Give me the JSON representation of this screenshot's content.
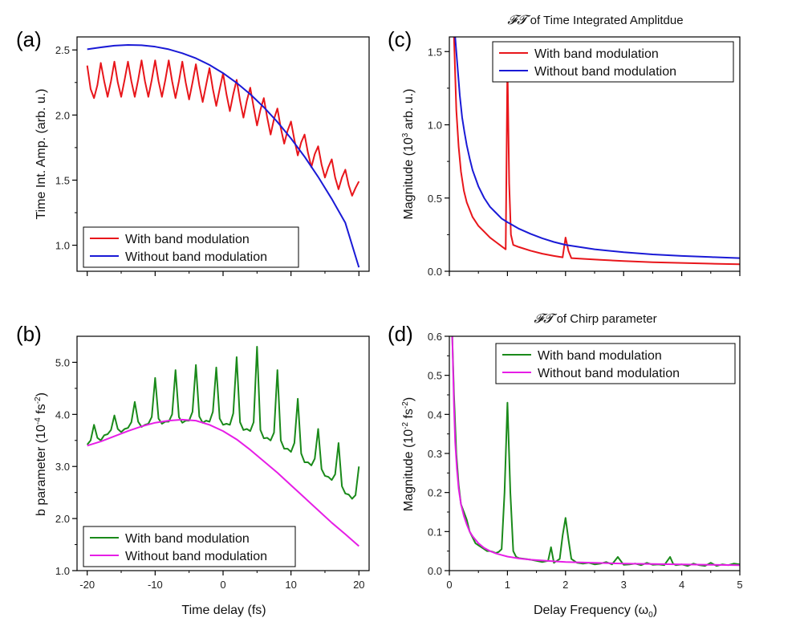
{
  "figure": {
    "xlabel_time": "Time delay (fs)",
    "xlabel_freq_prefix": "Delay Frequency (",
    "xlabel_freq_symbol": "ω",
    "xlabel_freq_sub": "0",
    "xlabel_freq_suffix": ")"
  },
  "chart_data": [
    {
      "id": "a",
      "panel_label": "(a)",
      "type": "line",
      "title": "",
      "ylabel": "Time Int. Amp. (arb. u.)",
      "xlim": [
        -21.5,
        21.5
      ],
      "ylim": [
        0.8,
        2.6
      ],
      "xticks": [
        -20,
        -10,
        0,
        10,
        20
      ],
      "show_xtick_labels": false,
      "yticks": [
        1.0,
        1.5,
        2.0,
        2.5
      ],
      "ytick_labels": [
        "1.0",
        "1.5",
        "2.0",
        "2.5"
      ],
      "legend_position": "bottom-left",
      "series": [
        {
          "name": "With band modulation",
          "color": "#e8161b",
          "x": [
            -20,
            -19.5,
            -19,
            -18.5,
            -18,
            -17.5,
            -17,
            -16.5,
            -16,
            -15.5,
            -15,
            -14.5,
            -14,
            -13.5,
            -13,
            -12.5,
            -12,
            -11.5,
            -11,
            -10.5,
            -10,
            -9.5,
            -9,
            -8.5,
            -8,
            -7.5,
            -7,
            -6.5,
            -6,
            -5.5,
            -5,
            -4.5,
            -4,
            -3.5,
            -3,
            -2.5,
            -2,
            -1.5,
            -1,
            -0.5,
            0,
            0.5,
            1,
            1.5,
            2,
            2.5,
            3,
            3.5,
            4,
            4.5,
            5,
            5.5,
            6,
            6.5,
            7,
            7.5,
            8,
            8.5,
            9,
            9.5,
            10,
            10.5,
            11,
            11.5,
            12,
            12.5,
            13,
            13.5,
            14,
            14.5,
            15,
            15.5,
            16,
            16.5,
            17,
            17.5,
            18,
            18.5,
            19,
            19.5,
            20
          ],
          "y": [
            2.38,
            2.2,
            2.13,
            2.23,
            2.4,
            2.26,
            2.14,
            2.26,
            2.41,
            2.25,
            2.14,
            2.27,
            2.41,
            2.26,
            2.14,
            2.27,
            2.42,
            2.26,
            2.14,
            2.27,
            2.42,
            2.26,
            2.14,
            2.27,
            2.42,
            2.26,
            2.13,
            2.26,
            2.41,
            2.25,
            2.12,
            2.25,
            2.39,
            2.23,
            2.1,
            2.23,
            2.36,
            2.2,
            2.07,
            2.2,
            2.32,
            2.16,
            2.03,
            2.16,
            2.27,
            2.11,
            1.98,
            2.11,
            2.21,
            2.06,
            1.92,
            2.04,
            2.13,
            1.98,
            1.85,
            1.97,
            2.05,
            1.9,
            1.78,
            1.88,
            1.95,
            1.81,
            1.69,
            1.79,
            1.85,
            1.71,
            1.6,
            1.7,
            1.76,
            1.62,
            1.52,
            1.6,
            1.66,
            1.52,
            1.43,
            1.52,
            1.58,
            1.46,
            1.38,
            1.44,
            1.49
          ]
        },
        {
          "name": "Without band modulation",
          "color": "#1a1ad6",
          "x": [
            -20,
            -18,
            -16,
            -14,
            -12,
            -10,
            -8,
            -6,
            -4,
            -2,
            0,
            2,
            4,
            6,
            8,
            10,
            12,
            14,
            16,
            18,
            20
          ],
          "y": [
            2.505,
            2.52,
            2.533,
            2.538,
            2.536,
            2.525,
            2.505,
            2.475,
            2.436,
            2.385,
            2.322,
            2.247,
            2.16,
            2.06,
            1.947,
            1.82,
            1.68,
            1.525,
            1.356,
            1.172,
            0.83
          ]
        }
      ]
    },
    {
      "id": "b",
      "panel_label": "(b)",
      "type": "line",
      "title": "",
      "ylabel_prefix": "b parameter (10",
      "ylabel_sup": "-4",
      "ylabel_mid": " fs",
      "ylabel_sup2": "-2",
      "ylabel_suffix": ")",
      "xlim": [
        -21.5,
        21.5
      ],
      "ylim": [
        1.0,
        5.5
      ],
      "xticks": [
        -20,
        -10,
        0,
        10,
        20
      ],
      "xtick_labels": [
        "-20",
        "-10",
        "0",
        "10",
        "20"
      ],
      "yticks": [
        1.0,
        2.0,
        3.0,
        4.0,
        5.0
      ],
      "ytick_labels": [
        "1.0",
        "2.0",
        "3.0",
        "4.0",
        "5.0"
      ],
      "legend_position": "bottom-left",
      "series": [
        {
          "name": "With band modulation",
          "color": "#1a8a1a",
          "x": [
            -20,
            -19.5,
            -19,
            -18.5,
            -18,
            -17.5,
            -17,
            -16.5,
            -16,
            -15.5,
            -15,
            -14.5,
            -14,
            -13.5,
            -13,
            -12.5,
            -12,
            -11.5,
            -11,
            -10.5,
            -10,
            -9.5,
            -9,
            -8.5,
            -8,
            -7.5,
            -7,
            -6.5,
            -6,
            -5.5,
            -5,
            -4.5,
            -4,
            -3.5,
            -3,
            -2.5,
            -2,
            -1.5,
            -1,
            -0.5,
            0,
            0.5,
            1,
            1.5,
            2,
            2.5,
            3,
            3.5,
            4,
            4.5,
            5,
            5.5,
            6,
            6.5,
            7,
            7.5,
            8,
            8.5,
            9,
            9.5,
            10,
            10.5,
            11,
            11.5,
            12,
            12.5,
            13,
            13.5,
            14,
            14.5,
            15,
            15.5,
            16,
            16.5,
            17,
            17.5,
            18,
            18.5,
            19,
            19.5,
            20
          ],
          "y": [
            3.42,
            3.5,
            3.8,
            3.55,
            3.5,
            3.6,
            3.62,
            3.7,
            3.98,
            3.72,
            3.66,
            3.72,
            3.74,
            3.85,
            4.24,
            3.86,
            3.76,
            3.8,
            3.82,
            3.95,
            4.7,
            3.92,
            3.82,
            3.86,
            3.86,
            4.0,
            4.85,
            3.95,
            3.84,
            3.88,
            3.88,
            4.05,
            4.95,
            3.96,
            3.84,
            3.88,
            3.86,
            4.05,
            4.9,
            3.92,
            3.8,
            3.82,
            3.8,
            4.02,
            5.1,
            3.85,
            3.7,
            3.72,
            3.68,
            3.85,
            5.3,
            3.7,
            3.54,
            3.55,
            3.5,
            3.65,
            4.85,
            3.5,
            3.34,
            3.34,
            3.28,
            3.45,
            4.3,
            3.25,
            3.08,
            3.08,
            3.02,
            3.15,
            3.72,
            2.95,
            2.82,
            2.8,
            2.74,
            2.85,
            3.45,
            2.62,
            2.48,
            2.46,
            2.38,
            2.45,
            3.0
          ]
        },
        {
          "name": "Without band modulation",
          "color": "#e61ee6",
          "x": [
            -20,
            -18,
            -16,
            -14,
            -12,
            -10,
            -8,
            -6,
            -4,
            -2,
            0,
            2,
            4,
            6,
            8,
            10,
            12,
            14,
            16,
            18,
            20
          ],
          "y": [
            3.4,
            3.48,
            3.58,
            3.68,
            3.77,
            3.84,
            3.88,
            3.9,
            3.88,
            3.8,
            3.68,
            3.52,
            3.32,
            3.1,
            2.88,
            2.64,
            2.4,
            2.16,
            1.92,
            1.7,
            1.47
          ]
        }
      ]
    },
    {
      "id": "c",
      "panel_label": "(c)",
      "type": "line",
      "title_fancy": "𝓕𝓣",
      "title": " of Time Integrated Amplitdue",
      "ylabel_prefix": "Magnitude (10",
      "ylabel_sup": "3",
      "ylabel_suffix": " arb. u.)",
      "xlim": [
        0,
        5
      ],
      "ylim": [
        0.0,
        1.6
      ],
      "xticks": [
        0,
        1,
        2,
        3,
        4,
        5
      ],
      "show_xtick_labels": false,
      "yticks": [
        0.0,
        0.5,
        1.0,
        1.5
      ],
      "ytick_labels": [
        "0.0",
        "0.5",
        "1.0",
        "1.5"
      ],
      "legend_position": "top-right",
      "series": [
        {
          "name": "With band modulation",
          "color": "#e8161b",
          "x": [
            0.08,
            0.12,
            0.16,
            0.2,
            0.25,
            0.3,
            0.4,
            0.5,
            0.6,
            0.7,
            0.8,
            0.9,
            0.97,
            1.0,
            1.03,
            1.06,
            1.1,
            1.2,
            1.4,
            1.6,
            1.8,
            1.95,
            2.0,
            2.05,
            2.1,
            2.3,
            2.6,
            3.0,
            3.5,
            4.0,
            4.5,
            5.0
          ],
          "y": [
            1.6,
            1.1,
            0.85,
            0.68,
            0.55,
            0.47,
            0.37,
            0.31,
            0.27,
            0.23,
            0.2,
            0.17,
            0.15,
            1.42,
            0.6,
            0.25,
            0.18,
            0.165,
            0.14,
            0.12,
            0.105,
            0.095,
            0.23,
            0.14,
            0.09,
            0.085,
            0.078,
            0.07,
            0.062,
            0.057,
            0.052,
            0.048
          ]
        },
        {
          "name": "Without band modulation",
          "color": "#1a1ad6",
          "x": [
            0.1,
            0.14,
            0.18,
            0.22,
            0.26,
            0.3,
            0.35,
            0.4,
            0.5,
            0.6,
            0.7,
            0.8,
            0.9,
            1.0,
            1.2,
            1.4,
            1.6,
            1.8,
            2.0,
            2.5,
            3.0,
            3.5,
            4.0,
            4.5,
            5.0
          ],
          "y": [
            1.6,
            1.4,
            1.2,
            1.05,
            0.95,
            0.86,
            0.77,
            0.69,
            0.58,
            0.5,
            0.44,
            0.4,
            0.36,
            0.335,
            0.29,
            0.255,
            0.225,
            0.2,
            0.18,
            0.15,
            0.13,
            0.115,
            0.105,
            0.097,
            0.09
          ]
        }
      ]
    },
    {
      "id": "d",
      "panel_label": "(d)",
      "type": "line",
      "title_fancy": "𝓕𝓣",
      "title": " of Chirp parameter",
      "ylabel_prefix": "Magnitude (10",
      "ylabel_sup": "-2",
      "ylabel_mid": " fs",
      "ylabel_sup2": "-2",
      "ylabel_suffix": ")",
      "xlim": [
        0,
        5
      ],
      "ylim": [
        0.0,
        0.6
      ],
      "xticks": [
        0,
        1,
        2,
        3,
        4,
        5
      ],
      "xtick_labels": [
        "0",
        "1",
        "2",
        "3",
        "4",
        "5"
      ],
      "yticks": [
        0.0,
        0.1,
        0.2,
        0.3,
        0.4,
        0.5,
        0.6
      ],
      "ytick_labels": [
        "0.0",
        "0.1",
        "0.2",
        "0.3",
        "0.4",
        "0.5",
        "0.6"
      ],
      "legend_position": "top-right",
      "series": [
        {
          "name": "With band modulation",
          "color": "#1a8a1a",
          "x": [
            0.05,
            0.08,
            0.12,
            0.16,
            0.2,
            0.25,
            0.3,
            0.35,
            0.4,
            0.45,
            0.5,
            0.55,
            0.6,
            0.65,
            0.7,
            0.75,
            0.8,
            0.85,
            0.9,
            0.95,
            1.0,
            1.05,
            1.1,
            1.15,
            1.2,
            1.3,
            1.4,
            1.5,
            1.6,
            1.7,
            1.75,
            1.8,
            1.85,
            1.9,
            1.95,
            2.0,
            2.05,
            2.1,
            2.2,
            2.3,
            2.4,
            2.5,
            2.6,
            2.7,
            2.8,
            2.9,
            3.0,
            3.1,
            3.2,
            3.3,
            3.4,
            3.5,
            3.6,
            3.7,
            3.8,
            3.85,
            3.9,
            4.0,
            4.1,
            4.2,
            4.3,
            4.4,
            4.5,
            4.6,
            4.7,
            4.8,
            4.9,
            5.0
          ],
          "y": [
            0.6,
            0.45,
            0.3,
            0.22,
            0.17,
            0.15,
            0.13,
            0.1,
            0.085,
            0.07,
            0.065,
            0.06,
            0.055,
            0.05,
            0.05,
            0.048,
            0.045,
            0.048,
            0.055,
            0.2,
            0.43,
            0.2,
            0.05,
            0.035,
            0.032,
            0.03,
            0.028,
            0.025,
            0.022,
            0.025,
            0.06,
            0.02,
            0.025,
            0.03,
            0.09,
            0.135,
            0.08,
            0.03,
            0.02,
            0.018,
            0.02,
            0.016,
            0.018,
            0.022,
            0.016,
            0.035,
            0.015,
            0.016,
            0.018,
            0.014,
            0.02,
            0.015,
            0.016,
            0.014,
            0.035,
            0.018,
            0.014,
            0.016,
            0.012,
            0.018,
            0.014,
            0.012,
            0.02,
            0.012,
            0.016,
            0.014,
            0.018,
            0.016
          ]
        },
        {
          "name": "Without band modulation",
          "color": "#e61ee6",
          "x": [
            0.05,
            0.08,
            0.1,
            0.13,
            0.16,
            0.2,
            0.25,
            0.3,
            0.35,
            0.4,
            0.5,
            0.6,
            0.7,
            0.8,
            0.9,
            1.0,
            1.2,
            1.4,
            1.6,
            1.8,
            2.0,
            2.5,
            3.0,
            3.5,
            4.0,
            4.5,
            5.0
          ],
          "y": [
            0.6,
            0.42,
            0.33,
            0.26,
            0.21,
            0.17,
            0.14,
            0.118,
            0.1,
            0.088,
            0.07,
            0.058,
            0.05,
            0.044,
            0.04,
            0.036,
            0.031,
            0.028,
            0.026,
            0.024,
            0.022,
            0.02,
            0.018,
            0.017,
            0.016,
            0.015,
            0.014
          ]
        }
      ]
    }
  ]
}
